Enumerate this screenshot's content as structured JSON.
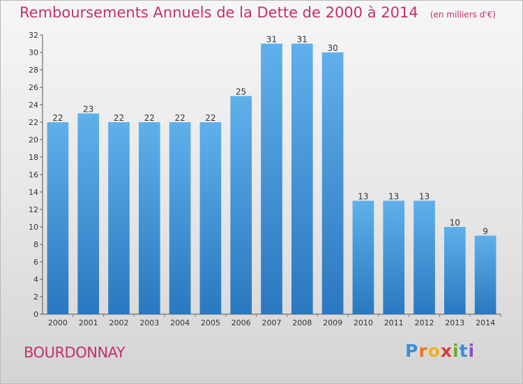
{
  "chart_data": {
    "type": "bar",
    "title": "Remboursements Annuels de la Dette de 2000 à 2014",
    "subtitle": "(en milliers d'€)",
    "categories": [
      "2000",
      "2001",
      "2002",
      "2003",
      "2004",
      "2005",
      "2006",
      "2007",
      "2008",
      "2009",
      "2010",
      "2011",
      "2012",
      "2013",
      "2014"
    ],
    "values": [
      22,
      23,
      22,
      22,
      22,
      22,
      25,
      31,
      31,
      30,
      13,
      13,
      13,
      10,
      9
    ],
    "ylim": [
      0,
      32
    ],
    "yticks": [
      0,
      2,
      4,
      6,
      8,
      10,
      12,
      14,
      16,
      18,
      20,
      22,
      24,
      26,
      28,
      30,
      32
    ],
    "grid": false,
    "bar_color_top": "#5fb0ea",
    "bar_color_bottom": "#2a78c0"
  },
  "commune": "BOURDONNAY",
  "brand": {
    "letters": [
      "P",
      "r",
      "o",
      "x",
      "i",
      "t",
      "i"
    ]
  }
}
